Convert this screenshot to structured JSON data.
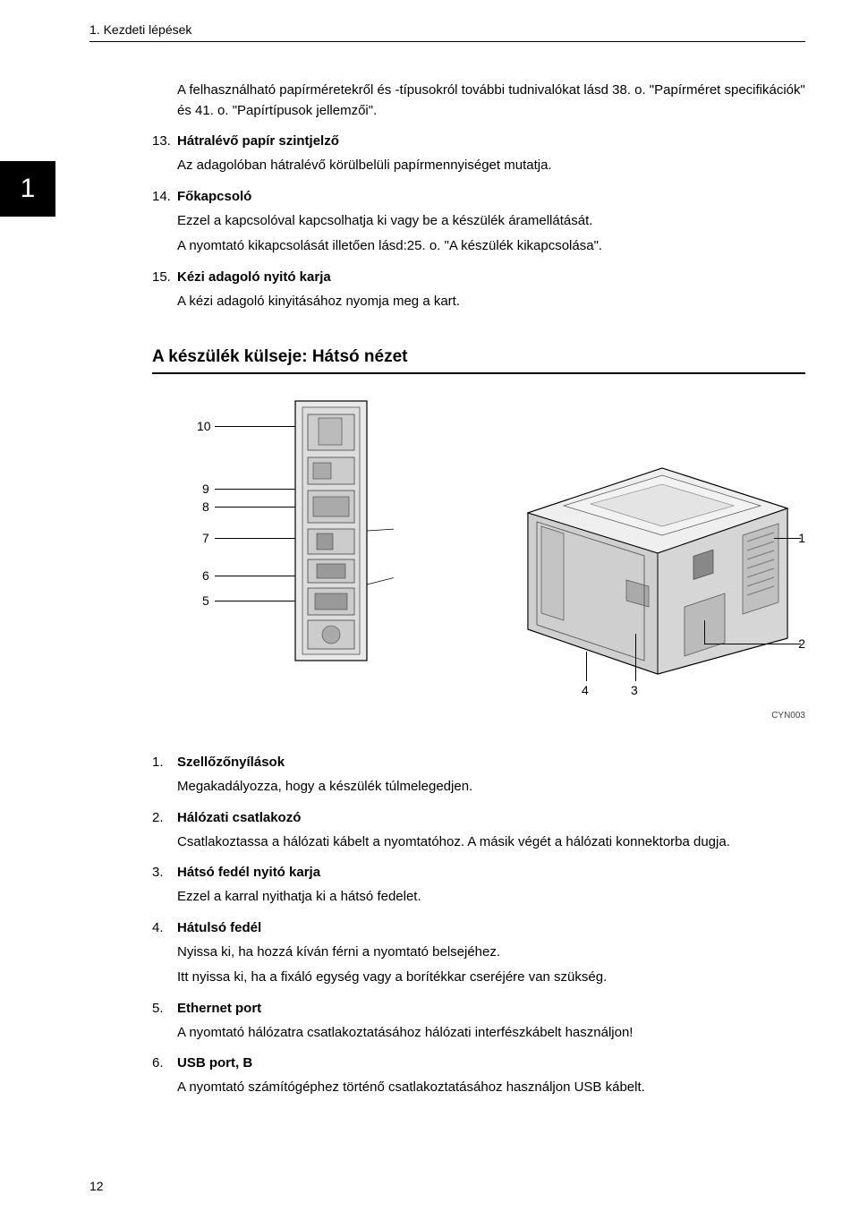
{
  "header": {
    "chapter_title": "1. Kezdeti lépések",
    "chapter_number": "1"
  },
  "intro": "A felhasználható papírméretekről és -típusokról további tudnivalókat lásd 38. o. \"Papírméret specifikációk\" és 41. o. \"Papírtípusok jellemzői\".",
  "items_top": [
    {
      "num": "13.",
      "title": "Hátralévő papír szintjelző",
      "desc": [
        "Az adagolóban hátralévő körülbelüli papírmennyiséget mutatja."
      ]
    },
    {
      "num": "14.",
      "title": "Főkapcsoló",
      "desc": [
        "Ezzel a kapcsolóval kapcsolhatja ki vagy be a készülék áramellátását.",
        "A nyomtató kikapcsolását illetően lásd:25. o. \"A készülék kikapcsolása\"."
      ]
    },
    {
      "num": "15.",
      "title": "Kézi adagoló nyitó karja",
      "desc": [
        "A kézi adagoló kinyitásához nyomja meg a kart."
      ]
    }
  ],
  "section_heading": "A készülék külseje: Hátsó nézet",
  "diagram": {
    "left_callouts": [
      "10",
      "9",
      "8",
      "7",
      "6",
      "5"
    ],
    "right_callouts": [
      "1",
      "2"
    ],
    "bottom_callouts": [
      "4",
      "3"
    ],
    "image_code": "CYN003"
  },
  "items_bottom": [
    {
      "num": "1.",
      "title": "Szellőzőnyílások",
      "desc": [
        "Megakadályozza, hogy a készülék túlmelegedjen."
      ]
    },
    {
      "num": "2.",
      "title": "Hálózati csatlakozó",
      "desc": [
        "Csatlakoztassa a hálózati kábelt a nyomtatóhoz. A másik végét a hálózati konnektorba dugja."
      ]
    },
    {
      "num": "3.",
      "title": "Hátsó fedél nyitó karja",
      "desc": [
        "Ezzel a karral nyithatja ki a hátsó fedelet."
      ]
    },
    {
      "num": "4.",
      "title": "Hátulsó fedél",
      "desc": [
        "Nyissa ki, ha hozzá kíván férni a nyomtató belsejéhez.",
        "Itt nyissa ki, ha a fixáló egység vagy a borítékkar cseréjére van szükség."
      ]
    },
    {
      "num": "5.",
      "title": "Ethernet port",
      "desc": [
        "A nyomtató hálózatra csatlakoztatásához hálózati interfészkábelt használjon!"
      ]
    },
    {
      "num": "6.",
      "title": "USB port, B",
      "desc": [
        "A nyomtató számítógéphez történő csatlakoztatásához használjon USB kábelt."
      ]
    }
  ],
  "page_number": "12"
}
